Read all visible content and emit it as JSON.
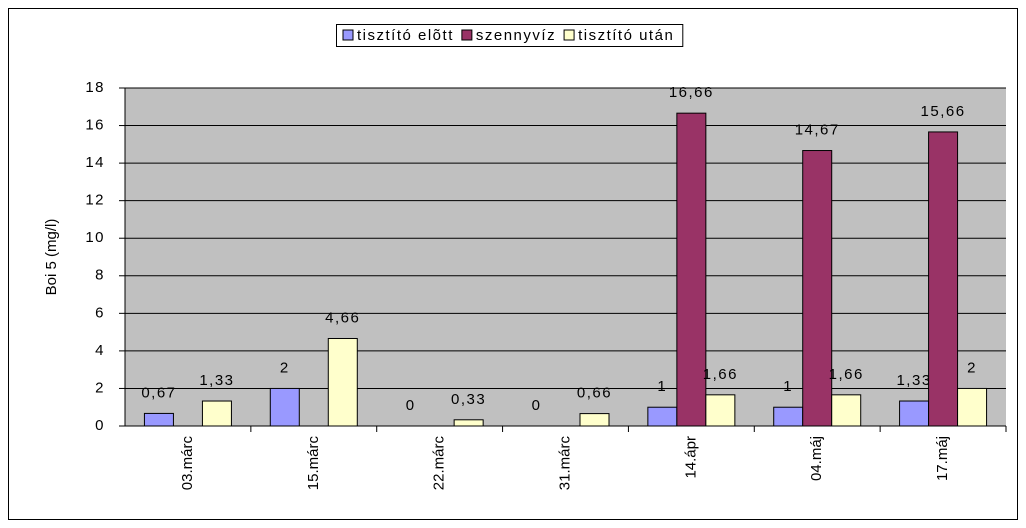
{
  "chart_data": {
    "type": "bar",
    "y_label": "Boi 5 (mg/l)",
    "categories": [
      "03.márc",
      "15.márc",
      "22.márc",
      "31.márc",
      "14.ápr",
      "04.máj",
      "17.máj"
    ],
    "series": [
      {
        "name": "tisztító elõtt",
        "color": "#9999ff",
        "values": [
          0.67,
          2,
          0,
          0,
          1,
          1,
          1.33
        ],
        "value_labels": [
          "0,67",
          "2",
          "0",
          "0",
          "1",
          "1",
          "1,33"
        ]
      },
      {
        "name": "szennyvíz",
        "color": "#993366",
        "values": [
          null,
          null,
          null,
          null,
          16.66,
          14.67,
          15.66
        ],
        "value_labels": [
          null,
          null,
          null,
          null,
          "16,66",
          "14,67",
          "15,66"
        ]
      },
      {
        "name": "tisztító után",
        "color": "#ffffcc",
        "values": [
          1.33,
          4.66,
          0.33,
          0.66,
          1.66,
          1.66,
          2
        ],
        "value_labels": [
          "1,33",
          "4,66",
          "0,33",
          "0,66",
          "1,66",
          "1,66",
          "2"
        ]
      }
    ],
    "ylim": [
      0,
      18
    ],
    "yticks": [
      0,
      2,
      4,
      6,
      8,
      10,
      12,
      14,
      16,
      18
    ],
    "grid": true,
    "legend": "top"
  }
}
